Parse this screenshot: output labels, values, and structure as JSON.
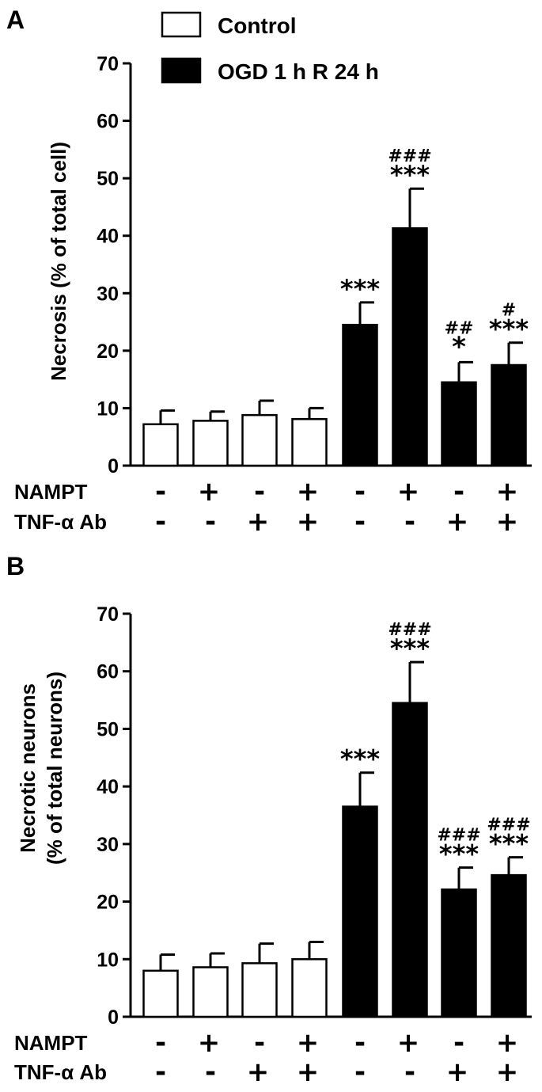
{
  "legend": {
    "items": [
      {
        "label": "Control",
        "fill": "#ffffff"
      },
      {
        "label": "OGD 1 h R 24 h",
        "fill": "#000000"
      }
    ]
  },
  "chart_data": [
    {
      "type": "bar",
      "panel": "A",
      "ylabel": "Necrosis (% of total cell)",
      "ylim": [
        0,
        70
      ],
      "yticks": [
        0,
        10,
        20,
        30,
        40,
        50,
        60,
        70
      ],
      "categories": [
        "1",
        "2",
        "3",
        "4",
        "5",
        "6",
        "7",
        "8"
      ],
      "values": [
        7.2,
        7.8,
        8.8,
        8.1,
        24.5,
        41.3,
        14.5,
        17.5
      ],
      "errors": [
        2.4,
        1.6,
        2.5,
        1.9,
        3.9,
        6.9,
        3.5,
        3.9
      ],
      "fills": [
        "#ffffff",
        "#ffffff",
        "#ffffff",
        "#ffffff",
        "#000000",
        "#000000",
        "#000000",
        "#000000"
      ],
      "star_labels": [
        "",
        "",
        "",
        "",
        "***",
        "***",
        "*",
        "***"
      ],
      "hash_labels": [
        "",
        "",
        "",
        "",
        "",
        "###",
        "##",
        "#"
      ],
      "treatments": [
        {
          "label": "NAMPT",
          "signs": [
            "-",
            "+",
            "-",
            "+",
            "-",
            "+",
            "-",
            "+"
          ]
        },
        {
          "label": "TNF-α Ab",
          "signs": [
            "-",
            "-",
            "+",
            "+",
            "-",
            "-",
            "+",
            "+"
          ]
        }
      ]
    },
    {
      "type": "bar",
      "panel": "B",
      "ylabel_lines": [
        "Necrotic neurons",
        "(% of total neurons)"
      ],
      "ylim": [
        0,
        70
      ],
      "yticks": [
        0,
        10,
        20,
        30,
        40,
        50,
        60,
        70
      ],
      "categories": [
        "1",
        "2",
        "3",
        "4",
        "5",
        "6",
        "7",
        "8"
      ],
      "values": [
        8.0,
        8.6,
        9.3,
        10.0,
        36.5,
        54.5,
        22.1,
        24.6
      ],
      "errors": [
        2.8,
        2.4,
        3.4,
        3.0,
        5.9,
        7.1,
        3.8,
        3.1
      ],
      "fills": [
        "#ffffff",
        "#ffffff",
        "#ffffff",
        "#ffffff",
        "#000000",
        "#000000",
        "#000000",
        "#000000"
      ],
      "star_labels": [
        "",
        "",
        "",
        "",
        "***",
        "***",
        "***",
        "***"
      ],
      "hash_labels": [
        "",
        "",
        "",
        "",
        "",
        "###",
        "###",
        "###"
      ],
      "treatments": [
        {
          "label": "NAMPT",
          "signs": [
            "-",
            "+",
            "-",
            "+",
            "-",
            "+",
            "-",
            "+"
          ]
        },
        {
          "label": "TNF-α Ab",
          "signs": [
            "-",
            "-",
            "+",
            "+",
            "-",
            "-",
            "+",
            "+"
          ]
        }
      ]
    }
  ]
}
